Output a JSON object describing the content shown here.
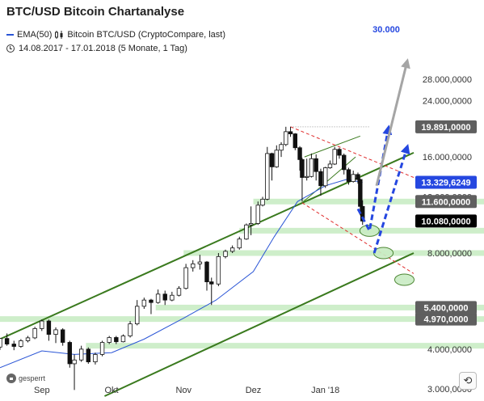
{
  "title": "BTC/USD Bitcoin Chartanalyse",
  "legend": {
    "ema_label": "EMA(50)",
    "series_label": "Bitcoin BTC/USD (CryptoCompare, last)",
    "period_label": "14.08.2017 - 17.01.2018 (5 Monate, 1 Tag)"
  },
  "controls": {
    "lock_label": "gesperrt",
    "reset_glyph": "⟲"
  },
  "colors": {
    "candle": "#111111",
    "ema": "#2a55d6",
    "channel": "#3a7a1e",
    "support": "#c9ecc4",
    "resistance": "#e03030",
    "projection_blue": "#2547e0",
    "projection_gray": "#a5a5a5",
    "price_box_dark": "#5f5f5f",
    "price_box_black": "#000000",
    "price_box_blue": "#2547e0"
  },
  "chart_data": {
    "type": "candlestick",
    "x_labels": [
      {
        "label": "Sep",
        "date": "2017-09-01"
      },
      {
        "label": "Okt",
        "date": "2017-10-01"
      },
      {
        "label": "Nov",
        "date": "2017-11-01"
      },
      {
        "label": "Dez",
        "date": "2017-12-01"
      },
      {
        "label": "Jan '18",
        "date": "2018-01-01"
      }
    ],
    "x_range": [
      "2017-08-14",
      "2018-02-08"
    ],
    "y_scale": "log",
    "y_range": [
      2850,
      33000
    ],
    "y_ticks": [
      {
        "value": 28000,
        "label": "28.000,0000"
      },
      {
        "value": 24000,
        "label": "24.000,0000"
      },
      {
        "value": 16000,
        "label": "16.000,0000"
      },
      {
        "value": 12000,
        "label": "12.000,0000"
      },
      {
        "value": 8000,
        "label": "8.000,0000"
      },
      {
        "value": 4000,
        "label": "4.000,0000"
      },
      {
        "value": 3000,
        "label": "3.000,0000"
      }
    ],
    "price_boxes": [
      {
        "value": 19891,
        "label": "19.891,0000",
        "style": "dark"
      },
      {
        "value": 13329.6249,
        "label": "13.329,6249",
        "style": "blue"
      },
      {
        "value": 11600,
        "label": "11.600,0000",
        "style": "dark"
      },
      {
        "value": 10080,
        "label": "10.080,0000",
        "style": "black"
      },
      {
        "value": 4970,
        "label": "4.970,0000",
        "style": "dark"
      },
      {
        "value": 5400,
        "label": "5.400,0000",
        "style": "dark"
      }
    ],
    "annotation_label": "30.000",
    "candles": [
      {
        "date": "2017-08-14",
        "o": 4060,
        "h": 4330,
        "l": 3980,
        "c": 4320
      },
      {
        "date": "2017-08-17",
        "o": 4320,
        "h": 4480,
        "l": 4100,
        "c": 4150
      },
      {
        "date": "2017-08-20",
        "o": 4150,
        "h": 4250,
        "l": 3970,
        "c": 4080
      },
      {
        "date": "2017-08-23",
        "o": 4080,
        "h": 4300,
        "l": 4040,
        "c": 4250
      },
      {
        "date": "2017-08-26",
        "o": 4250,
        "h": 4400,
        "l": 4200,
        "c": 4340
      },
      {
        "date": "2017-08-29",
        "o": 4340,
        "h": 4700,
        "l": 4300,
        "c": 4640
      },
      {
        "date": "2017-09-01",
        "o": 4640,
        "h": 4950,
        "l": 4560,
        "c": 4900
      },
      {
        "date": "2017-09-04",
        "o": 4900,
        "h": 4950,
        "l": 4250,
        "c": 4450
      },
      {
        "date": "2017-09-07",
        "o": 4450,
        "h": 4680,
        "l": 4180,
        "c": 4600
      },
      {
        "date": "2017-09-10",
        "o": 4600,
        "h": 4650,
        "l": 4100,
        "c": 4200
      },
      {
        "date": "2017-09-13",
        "o": 4200,
        "h": 4250,
        "l": 3500,
        "c": 3600
      },
      {
        "date": "2017-09-15",
        "o": 3600,
        "h": 3850,
        "l": 2980,
        "c": 3700
      },
      {
        "date": "2017-09-18",
        "o": 3700,
        "h": 4100,
        "l": 3650,
        "c": 4000
      },
      {
        "date": "2017-09-21",
        "o": 4000,
        "h": 4050,
        "l": 3600,
        "c": 3650
      },
      {
        "date": "2017-09-24",
        "o": 3650,
        "h": 3900,
        "l": 3580,
        "c": 3850
      },
      {
        "date": "2017-09-27",
        "o": 3850,
        "h": 4250,
        "l": 3800,
        "c": 4200
      },
      {
        "date": "2017-09-30",
        "o": 4200,
        "h": 4400,
        "l": 4150,
        "c": 4350
      },
      {
        "date": "2017-10-03",
        "o": 4350,
        "h": 4400,
        "l": 4150,
        "c": 4220
      },
      {
        "date": "2017-10-06",
        "o": 4220,
        "h": 4450,
        "l": 4200,
        "c": 4400
      },
      {
        "date": "2017-10-09",
        "o": 4400,
        "h": 4900,
        "l": 4350,
        "c": 4800
      },
      {
        "date": "2017-10-12",
        "o": 4800,
        "h": 5700,
        "l": 4750,
        "c": 5450
      },
      {
        "date": "2017-10-15",
        "o": 5450,
        "h": 5800,
        "l": 5350,
        "c": 5700
      },
      {
        "date": "2017-10-18",
        "o": 5700,
        "h": 5750,
        "l": 5150,
        "c": 5600
      },
      {
        "date": "2017-10-21",
        "o": 5600,
        "h": 6150,
        "l": 5550,
        "c": 5950
      },
      {
        "date": "2017-10-24",
        "o": 5950,
        "h": 6100,
        "l": 5500,
        "c": 5700
      },
      {
        "date": "2017-10-27",
        "o": 5700,
        "h": 6050,
        "l": 5650,
        "c": 5900
      },
      {
        "date": "2017-10-30",
        "o": 5900,
        "h": 6300,
        "l": 5850,
        "c": 6200
      },
      {
        "date": "2017-11-02",
        "o": 6200,
        "h": 7400,
        "l": 6150,
        "c": 7200
      },
      {
        "date": "2017-11-05",
        "o": 7200,
        "h": 7600,
        "l": 7000,
        "c": 7400
      },
      {
        "date": "2017-11-08",
        "o": 7400,
        "h": 7900,
        "l": 7100,
        "c": 7500
      },
      {
        "date": "2017-11-11",
        "o": 7500,
        "h": 7550,
        "l": 6100,
        "c": 6500
      },
      {
        "date": "2017-11-13",
        "o": 6500,
        "h": 6700,
        "l": 5500,
        "c": 6400
      },
      {
        "date": "2017-11-16",
        "o": 6400,
        "h": 8000,
        "l": 6300,
        "c": 7800
      },
      {
        "date": "2017-11-19",
        "o": 7800,
        "h": 8200,
        "l": 7700,
        "c": 8100
      },
      {
        "date": "2017-11-22",
        "o": 8100,
        "h": 8450,
        "l": 8000,
        "c": 8300
      },
      {
        "date": "2017-11-25",
        "o": 8300,
        "h": 9000,
        "l": 8200,
        "c": 8850
      },
      {
        "date": "2017-11-28",
        "o": 8850,
        "h": 9900,
        "l": 8800,
        "c": 9800
      },
      {
        "date": "2017-11-30",
        "o": 9800,
        "h": 11200,
        "l": 9100,
        "c": 9900
      },
      {
        "date": "2017-12-03",
        "o": 9900,
        "h": 11600,
        "l": 9800,
        "c": 11300
      },
      {
        "date": "2017-12-05",
        "o": 11300,
        "h": 12000,
        "l": 11200,
        "c": 11800
      },
      {
        "date": "2017-12-07",
        "o": 11800,
        "h": 17200,
        "l": 11700,
        "c": 16400
      },
      {
        "date": "2017-12-09",
        "o": 16400,
        "h": 16500,
        "l": 13500,
        "c": 14900
      },
      {
        "date": "2017-12-11",
        "o": 14900,
        "h": 17400,
        "l": 14800,
        "c": 16800
      },
      {
        "date": "2017-12-13",
        "o": 16800,
        "h": 17800,
        "l": 16000,
        "c": 17500
      },
      {
        "date": "2017-12-15",
        "o": 17500,
        "h": 19891,
        "l": 17300,
        "c": 19200
      },
      {
        "date": "2017-12-17",
        "o": 19200,
        "h": 19891,
        "l": 18500,
        "c": 18900
      },
      {
        "date": "2017-12-19",
        "o": 18900,
        "h": 19000,
        "l": 16800,
        "c": 17100
      },
      {
        "date": "2017-12-21",
        "o": 17100,
        "h": 17300,
        "l": 14500,
        "c": 15700
      },
      {
        "date": "2017-12-22",
        "o": 15700,
        "h": 15900,
        "l": 11600,
        "c": 13800
      },
      {
        "date": "2017-12-24",
        "o": 13800,
        "h": 15800,
        "l": 13500,
        "c": 13900
      },
      {
        "date": "2017-12-26",
        "o": 13900,
        "h": 16400,
        "l": 13800,
        "c": 15800
      },
      {
        "date": "2017-12-28",
        "o": 15800,
        "h": 16300,
        "l": 13500,
        "c": 14400
      },
      {
        "date": "2017-12-30",
        "o": 14400,
        "h": 14700,
        "l": 12100,
        "c": 13000
      },
      {
        "date": "2018-01-01",
        "o": 13000,
        "h": 14900,
        "l": 12800,
        "c": 14800
      },
      {
        "date": "2018-01-03",
        "o": 14800,
        "h": 15600,
        "l": 14700,
        "c": 15200
      },
      {
        "date": "2018-01-05",
        "o": 15200,
        "h": 17200,
        "l": 15100,
        "c": 16900
      },
      {
        "date": "2018-01-07",
        "o": 16900,
        "h": 17100,
        "l": 15800,
        "c": 16200
      },
      {
        "date": "2018-01-09",
        "o": 16200,
        "h": 16400,
        "l": 14100,
        "c": 14600
      },
      {
        "date": "2018-01-11",
        "o": 14600,
        "h": 14800,
        "l": 13100,
        "c": 13400
      },
      {
        "date": "2018-01-13",
        "o": 13400,
        "h": 14500,
        "l": 13300,
        "c": 14100
      },
      {
        "date": "2018-01-15",
        "o": 14100,
        "h": 14300,
        "l": 13200,
        "c": 13600
      },
      {
        "date": "2018-01-16",
        "o": 13600,
        "h": 13700,
        "l": 10500,
        "c": 11200
      },
      {
        "date": "2018-01-17",
        "o": 11200,
        "h": 11700,
        "l": 9800,
        "c": 10080
      }
    ],
    "ema50": [
      {
        "date": "2017-08-14",
        "v": 3500
      },
      {
        "date": "2017-09-01",
        "v": 3950
      },
      {
        "date": "2017-09-15",
        "v": 3850
      },
      {
        "date": "2017-10-01",
        "v": 3900
      },
      {
        "date": "2017-10-15",
        "v": 4300
      },
      {
        "date": "2017-11-01",
        "v": 5000
      },
      {
        "date": "2017-11-15",
        "v": 5700
      },
      {
        "date": "2017-12-01",
        "v": 7000
      },
      {
        "date": "2017-12-10",
        "v": 9000
      },
      {
        "date": "2017-12-20",
        "v": 11600
      },
      {
        "date": "2018-01-01",
        "v": 13000
      },
      {
        "date": "2018-01-10",
        "v": 13600
      },
      {
        "date": "2018-01-17",
        "v": 13329.6249
      }
    ],
    "support_zones": [
      11600,
      9400,
      8000,
      5400,
      4970,
      4100
    ],
    "support_zone_starts": [
      "2017-12-01",
      "2017-11-25",
      "2017-11-01",
      "2017-10-20",
      "2017-08-14",
      "2017-09-20"
    ],
    "trend_channel": {
      "upper": [
        {
          "date": "2017-08-14",
          "v": 4300
        },
        {
          "date": "2018-02-08",
          "v": 16500
        }
      ],
      "lower": [
        {
          "date": "2017-09-28",
          "v": 2850
        },
        {
          "date": "2018-02-08",
          "v": 8000
        }
      ]
    },
    "triangle": {
      "upper": [
        {
          "date": "2017-12-23",
          "v": 16000
        },
        {
          "date": "2018-01-16",
          "v": 18600
        }
      ],
      "lower": [
        {
          "date": "2017-12-22",
          "v": 11500
        },
        {
          "date": "2018-01-14",
          "v": 16000
        }
      ]
    },
    "resistance_lines": [
      {
        "from": {
          "date": "2017-12-17",
          "v": 19891
        },
        "to": {
          "date": "2018-01-20",
          "v": 19891
        },
        "style": "dotted"
      },
      {
        "from": {
          "date": "2017-12-17",
          "v": 19891
        },
        "to": {
          "date": "2018-02-08",
          "v": 13800
        },
        "style": "dashed"
      },
      {
        "from": {
          "date": "2017-12-22",
          "v": 11500
        },
        "to": {
          "date": "2018-02-08",
          "v": 6900
        },
        "style": "dashed"
      }
    ],
    "target_ellipses": [
      {
        "date": "2018-01-20",
        "v": 9400
      },
      {
        "date": "2018-01-26",
        "v": 8000
      },
      {
        "date": "2018-02-04",
        "v": 6600
      }
    ],
    "projections": [
      {
        "points": [
          {
            "date": "2018-01-15",
            "v": 11000
          },
          {
            "date": "2018-01-20",
            "v": 9400
          },
          {
            "date": "2018-01-28",
            "v": 19500
          }
        ],
        "color": "blue"
      },
      {
        "points": [
          {
            "date": "2018-01-22",
            "v": 8000
          },
          {
            "date": "2018-02-05",
            "v": 17000
          }
        ],
        "color": "blue"
      },
      {
        "points": [
          {
            "date": "2018-01-23",
            "v": 13000
          },
          {
            "date": "2018-02-05",
            "v": 31500
          }
        ],
        "color": "gray"
      }
    ]
  }
}
